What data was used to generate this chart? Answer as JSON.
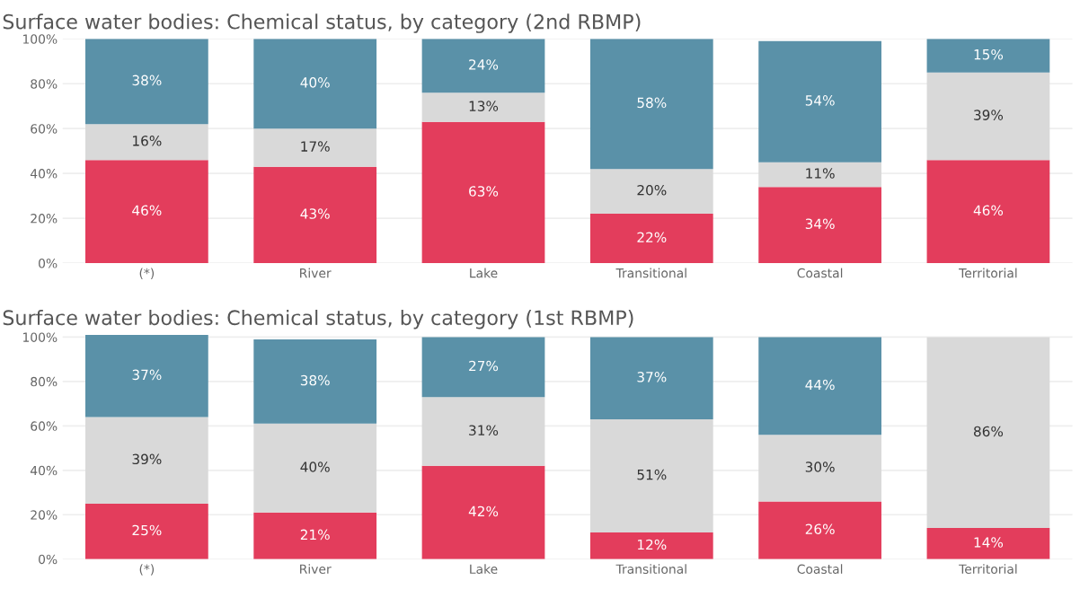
{
  "chart_data": [
    {
      "type": "bar",
      "title": "Surface water bodies: Chemical status, by category (2nd RBMP)",
      "stacked": true,
      "categories": [
        "(*)",
        "River",
        "Lake",
        "Transitional",
        "Coastal",
        "Territorial"
      ],
      "ylim": [
        0,
        100
      ],
      "yticks": [
        {
          "value": 0,
          "label": "0%"
        },
        {
          "value": 20,
          "label": "20%"
        },
        {
          "value": 40,
          "label": "40%"
        },
        {
          "value": 60,
          "label": "60%"
        },
        {
          "value": 80,
          "label": "80%"
        },
        {
          "value": 100,
          "label": "100%"
        }
      ],
      "grid": "y",
      "legend": false,
      "series": [
        {
          "color": "#e33d5c",
          "values": [
            46,
            43,
            63,
            22,
            34,
            46
          ],
          "value_labels": [
            "46%",
            "43%",
            "63%",
            "22%",
            "34%",
            "46%"
          ]
        },
        {
          "color": "#d9d9d9",
          "values": [
            16,
            17,
            13,
            20,
            11,
            39
          ],
          "value_labels": [
            "16%",
            "17%",
            "13%",
            "20%",
            "11%",
            "39%"
          ]
        },
        {
          "color": "#5a91a8",
          "values": [
            38,
            40,
            24,
            58,
            54,
            15
          ],
          "value_labels": [
            "38%",
            "40%",
            "24%",
            "58%",
            "54%",
            "15%"
          ]
        }
      ]
    },
    {
      "type": "bar",
      "title": "Surface water bodies: Chemical status, by category (1st RBMP)",
      "stacked": true,
      "categories": [
        "(*)",
        "River",
        "Lake",
        "Transitional",
        "Coastal",
        "Territorial"
      ],
      "ylim": [
        0,
        101
      ],
      "yticks": [
        {
          "value": 0,
          "label": "0%"
        },
        {
          "value": 20,
          "label": "20%"
        },
        {
          "value": 40,
          "label": "40%"
        },
        {
          "value": 60,
          "label": "60%"
        },
        {
          "value": 80,
          "label": "80%"
        },
        {
          "value": 100,
          "label": "100%"
        }
      ],
      "grid": "y",
      "legend": false,
      "series": [
        {
          "color": "#e33d5c",
          "values": [
            25,
            21,
            42,
            12,
            26,
            14
          ],
          "value_labels": [
            "25%",
            "21%",
            "42%",
            "12%",
            "26%",
            "14%"
          ]
        },
        {
          "color": "#d9d9d9",
          "values": [
            39,
            40,
            31,
            51,
            30,
            86
          ],
          "value_labels": [
            "39%",
            "40%",
            "31%",
            "51%",
            "30%",
            "86%"
          ]
        },
        {
          "color": "#5a91a8",
          "values": [
            37,
            38,
            27,
            37,
            44,
            null
          ],
          "value_labels": [
            "37%",
            "38%",
            "27%",
            "37%",
            "44%",
            null
          ]
        }
      ]
    }
  ]
}
